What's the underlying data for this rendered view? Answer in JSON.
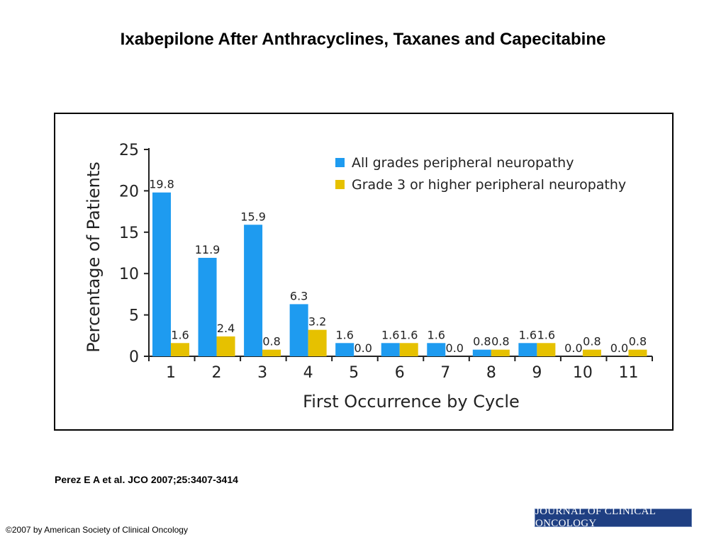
{
  "slide": {
    "title": "Ixabepilone After Anthracyclines, Taxanes and Capecitabine",
    "citation": "Perez E A et al. JCO 2007;25:3407-3414",
    "copyright": "©2007 by American Society of Clinical Oncology",
    "journal_logo_text": "JOURNAL OF CLINICAL ONCOLOGY"
  },
  "chart_data": {
    "type": "bar",
    "title": "",
    "xlabel": "First Occurrence by Cycle",
    "ylabel": "Percentage of Patients",
    "categories": [
      "1",
      "2",
      "3",
      "4",
      "5",
      "6",
      "7",
      "8",
      "9",
      "10",
      "11"
    ],
    "ylim": [
      0,
      25
    ],
    "yticks": [
      0,
      5,
      10,
      15,
      20,
      25
    ],
    "grid": false,
    "legend_position": "top-right",
    "series": [
      {
        "name": "All grades peripheral neuropathy",
        "color": "#1e9bf0",
        "values": [
          19.8,
          11.9,
          15.9,
          6.3,
          1.6,
          1.6,
          1.6,
          0.8,
          1.6,
          0.0,
          0.0
        ],
        "labels": [
          "19.8",
          "11.9",
          "15.9",
          "6.3",
          "1.6",
          "1.6",
          "1.6",
          "0.8",
          "1.6",
          "0.0",
          "0.0"
        ]
      },
      {
        "name": "Grade 3 or higher peripheral neuropathy",
        "color": "#e6c100",
        "values": [
          1.6,
          2.4,
          0.8,
          3.2,
          0.0,
          1.6,
          0.0,
          0.8,
          1.6,
          0.8,
          0.8
        ],
        "labels": [
          "1.6",
          "2.4",
          "0.8",
          "3.2",
          "0.0",
          "1.6",
          "0.0",
          "0.8",
          "1.6",
          "0.8",
          "0.8"
        ]
      }
    ]
  }
}
